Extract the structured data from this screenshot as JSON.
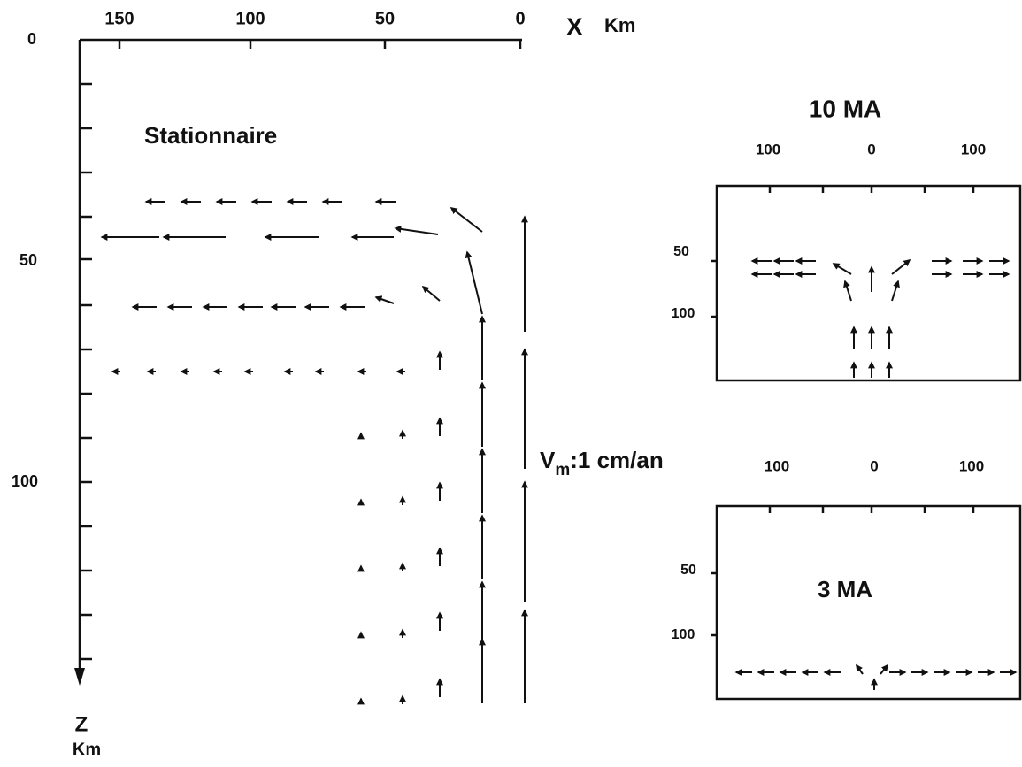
{
  "main": {
    "title": "Stationnaire",
    "x_ticks": [
      "150",
      "100",
      "50",
      "0"
    ],
    "x_label": "X",
    "x_unit": "Km",
    "z_ticks": [
      "0",
      "50",
      "100"
    ],
    "z_label": "Z",
    "z_unit": "Km"
  },
  "velocity_scale": {
    "symbol": "V",
    "subscript": "m",
    "text": ":1 cm/an"
  },
  "panels": [
    {
      "title": "10 MA",
      "x_ticks": [
        "100",
        "0",
        "100"
      ],
      "z_ticks": [
        "50",
        "100"
      ]
    },
    {
      "title": "3 MA",
      "x_ticks": [
        "100",
        "0",
        "100"
      ],
      "z_ticks": [
        "50",
        "100"
      ]
    }
  ]
}
